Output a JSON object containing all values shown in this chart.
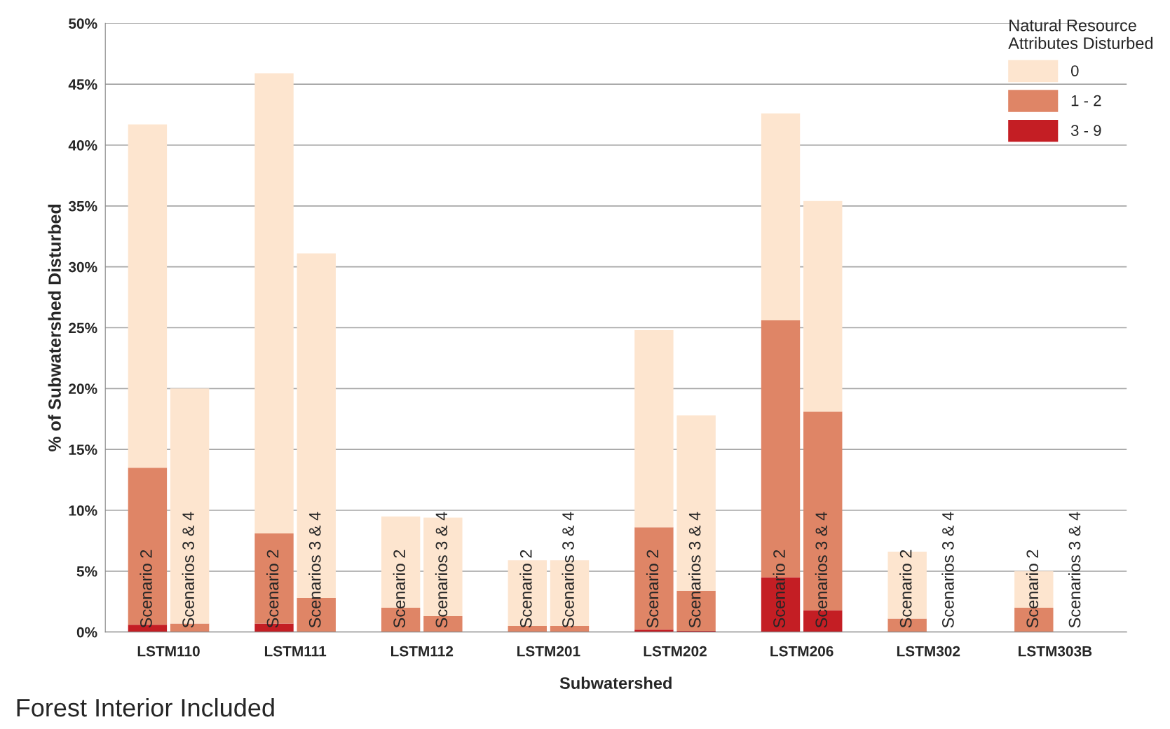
{
  "chart_data": {
    "type": "bar",
    "stacked": true,
    "xlabel": "Subwatershed",
    "ylabel": "% of Subwatershed Disturbed",
    "legend_title": "Natural Resource\nAttributes Disturbed",
    "categories": [
      "Scenario 2",
      "Scenarios 3 & 4",
      "Scenario 2",
      "Scenarios 3 & 4",
      "Scenario 2",
      "Scenarios 3 & 4",
      "Scenario 2",
      "Scenarios 3 & 4",
      "Scenario 2",
      "Scenarios 3 & 4",
      "Scenario 2",
      "Scenarios 3 & 4",
      "Scenario 2",
      "Scenarios 3 & 4",
      "Scenario 2",
      "Scenarios 3 & 4"
    ],
    "series": [
      {
        "name": "3 - 9",
        "color": "#c41e24",
        "values": [
          0.6,
          0,
          0.7,
          0,
          0,
          0,
          0,
          0,
          0.2,
          0.1,
          4.5,
          1.8,
          0,
          0,
          0,
          0
        ]
      },
      {
        "name": "1 - 2",
        "color": "#df8566",
        "values": [
          12.9,
          0.7,
          7.4,
          2.8,
          2.0,
          1.3,
          0.5,
          0.5,
          8.4,
          3.3,
          21.1,
          16.3,
          1.1,
          0,
          2.0,
          0
        ]
      },
      {
        "name": "0",
        "color": "#fde5cf",
        "values": [
          28.2,
          19.3,
          37.8,
          28.3,
          7.5,
          8.1,
          5.4,
          5.4,
          16.2,
          14.4,
          17.0,
          17.3,
          5.5,
          0,
          3.0,
          0
        ]
      }
    ],
    "ylim": [
      0,
      50
    ],
    "yticks": [
      {
        "value": 0,
        "label": "0%"
      },
      {
        "value": 5,
        "label": "5%"
      },
      {
        "value": 10,
        "label": "10%"
      },
      {
        "value": 15,
        "label": "15%"
      },
      {
        "value": 20,
        "label": "20%"
      },
      {
        "value": 25,
        "label": "25%"
      },
      {
        "value": 30,
        "label": "30%"
      },
      {
        "value": 35,
        "label": "35%"
      },
      {
        "value": 40,
        "label": "40%"
      },
      {
        "value": 45,
        "label": "45%"
      },
      {
        "value": 50,
        "label": "50%"
      }
    ],
    "grid": "y",
    "legend": "top right",
    "annotations": [
      "LSTM110",
      "LSTM111",
      "LSTM112",
      "LSTM201",
      "LSTM202",
      "LSTM206",
      "LSTM302",
      "LSTM303B",
      "Forest Interior Included"
    ]
  }
}
